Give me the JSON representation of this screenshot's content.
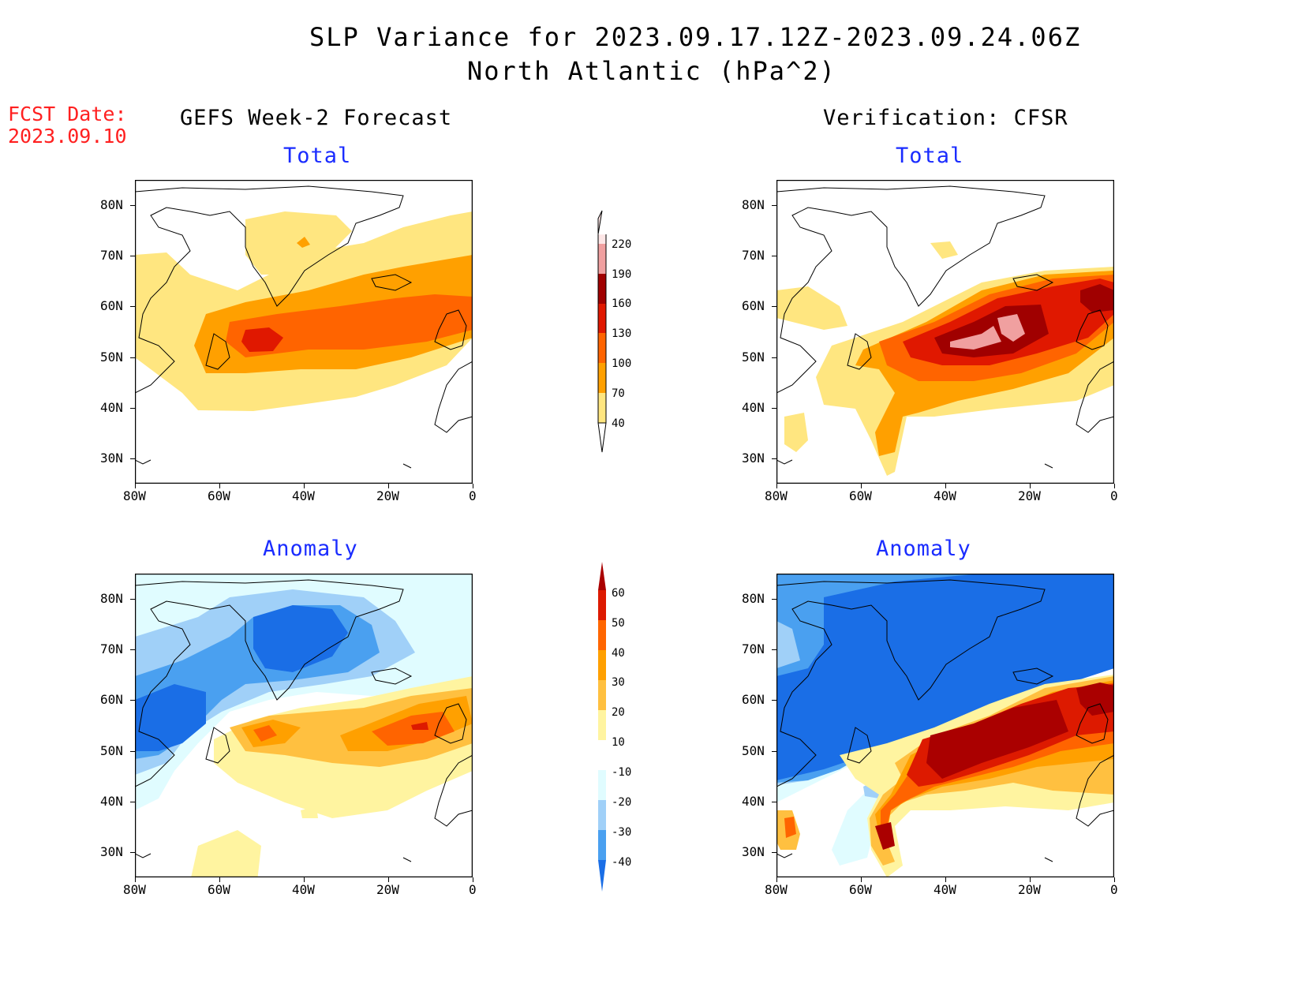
{
  "header": {
    "title_line1": "SLP Variance for 2023.09.17.12Z-2023.09.24.06Z",
    "title_line2": "North Atlantic (hPa^2)",
    "fcst_label": "FCST Date:",
    "fcst_date": "2023.09.10",
    "left_heading": "GEFS Week-2 Forecast",
    "right_heading": "Verification: CFSR"
  },
  "panels": {
    "forecast_total": {
      "label": "Total"
    },
    "verify_total": {
      "label": "Total"
    },
    "forecast_anomaly": {
      "label": "Anomaly"
    },
    "verify_anomaly": {
      "label": "Anomaly"
    }
  },
  "axes": {
    "lat_labels": [
      "80N",
      "70N",
      "60N",
      "50N",
      "40N",
      "30N"
    ],
    "lat_values": [
      80,
      70,
      60,
      50,
      40,
      30
    ],
    "lon_labels": [
      "80W",
      "60W",
      "40W",
      "20W",
      "0"
    ],
    "lon_values": [
      -80,
      -60,
      -40,
      -20,
      0
    ],
    "lat_range": [
      25,
      85
    ],
    "lon_range": [
      -80,
      0
    ]
  },
  "colorbar_total": {
    "labels": [
      "220",
      "190",
      "160",
      "130",
      "100",
      "70",
      "40"
    ],
    "colors": [
      "#fde6e6",
      "#f0a0a0",
      "#a00000",
      "#e01800",
      "#ff6400",
      "#ffa000",
      "#ffe680"
    ]
  },
  "colorbar_anomaly": {
    "labels": [
      "60",
      "50",
      "40",
      "30",
      "20",
      "10",
      "-10",
      "-20",
      "-30",
      "-40"
    ],
    "colors": [
      "#aa0000",
      "#dd1a00",
      "#ff6600",
      "#ffa000",
      "#ffc040",
      "#fff4a0",
      "#ffffff",
      "#e0fcff",
      "#a0d0f8",
      "#4aa0f0",
      "#1a6ee6",
      "#1050c8"
    ]
  }
}
